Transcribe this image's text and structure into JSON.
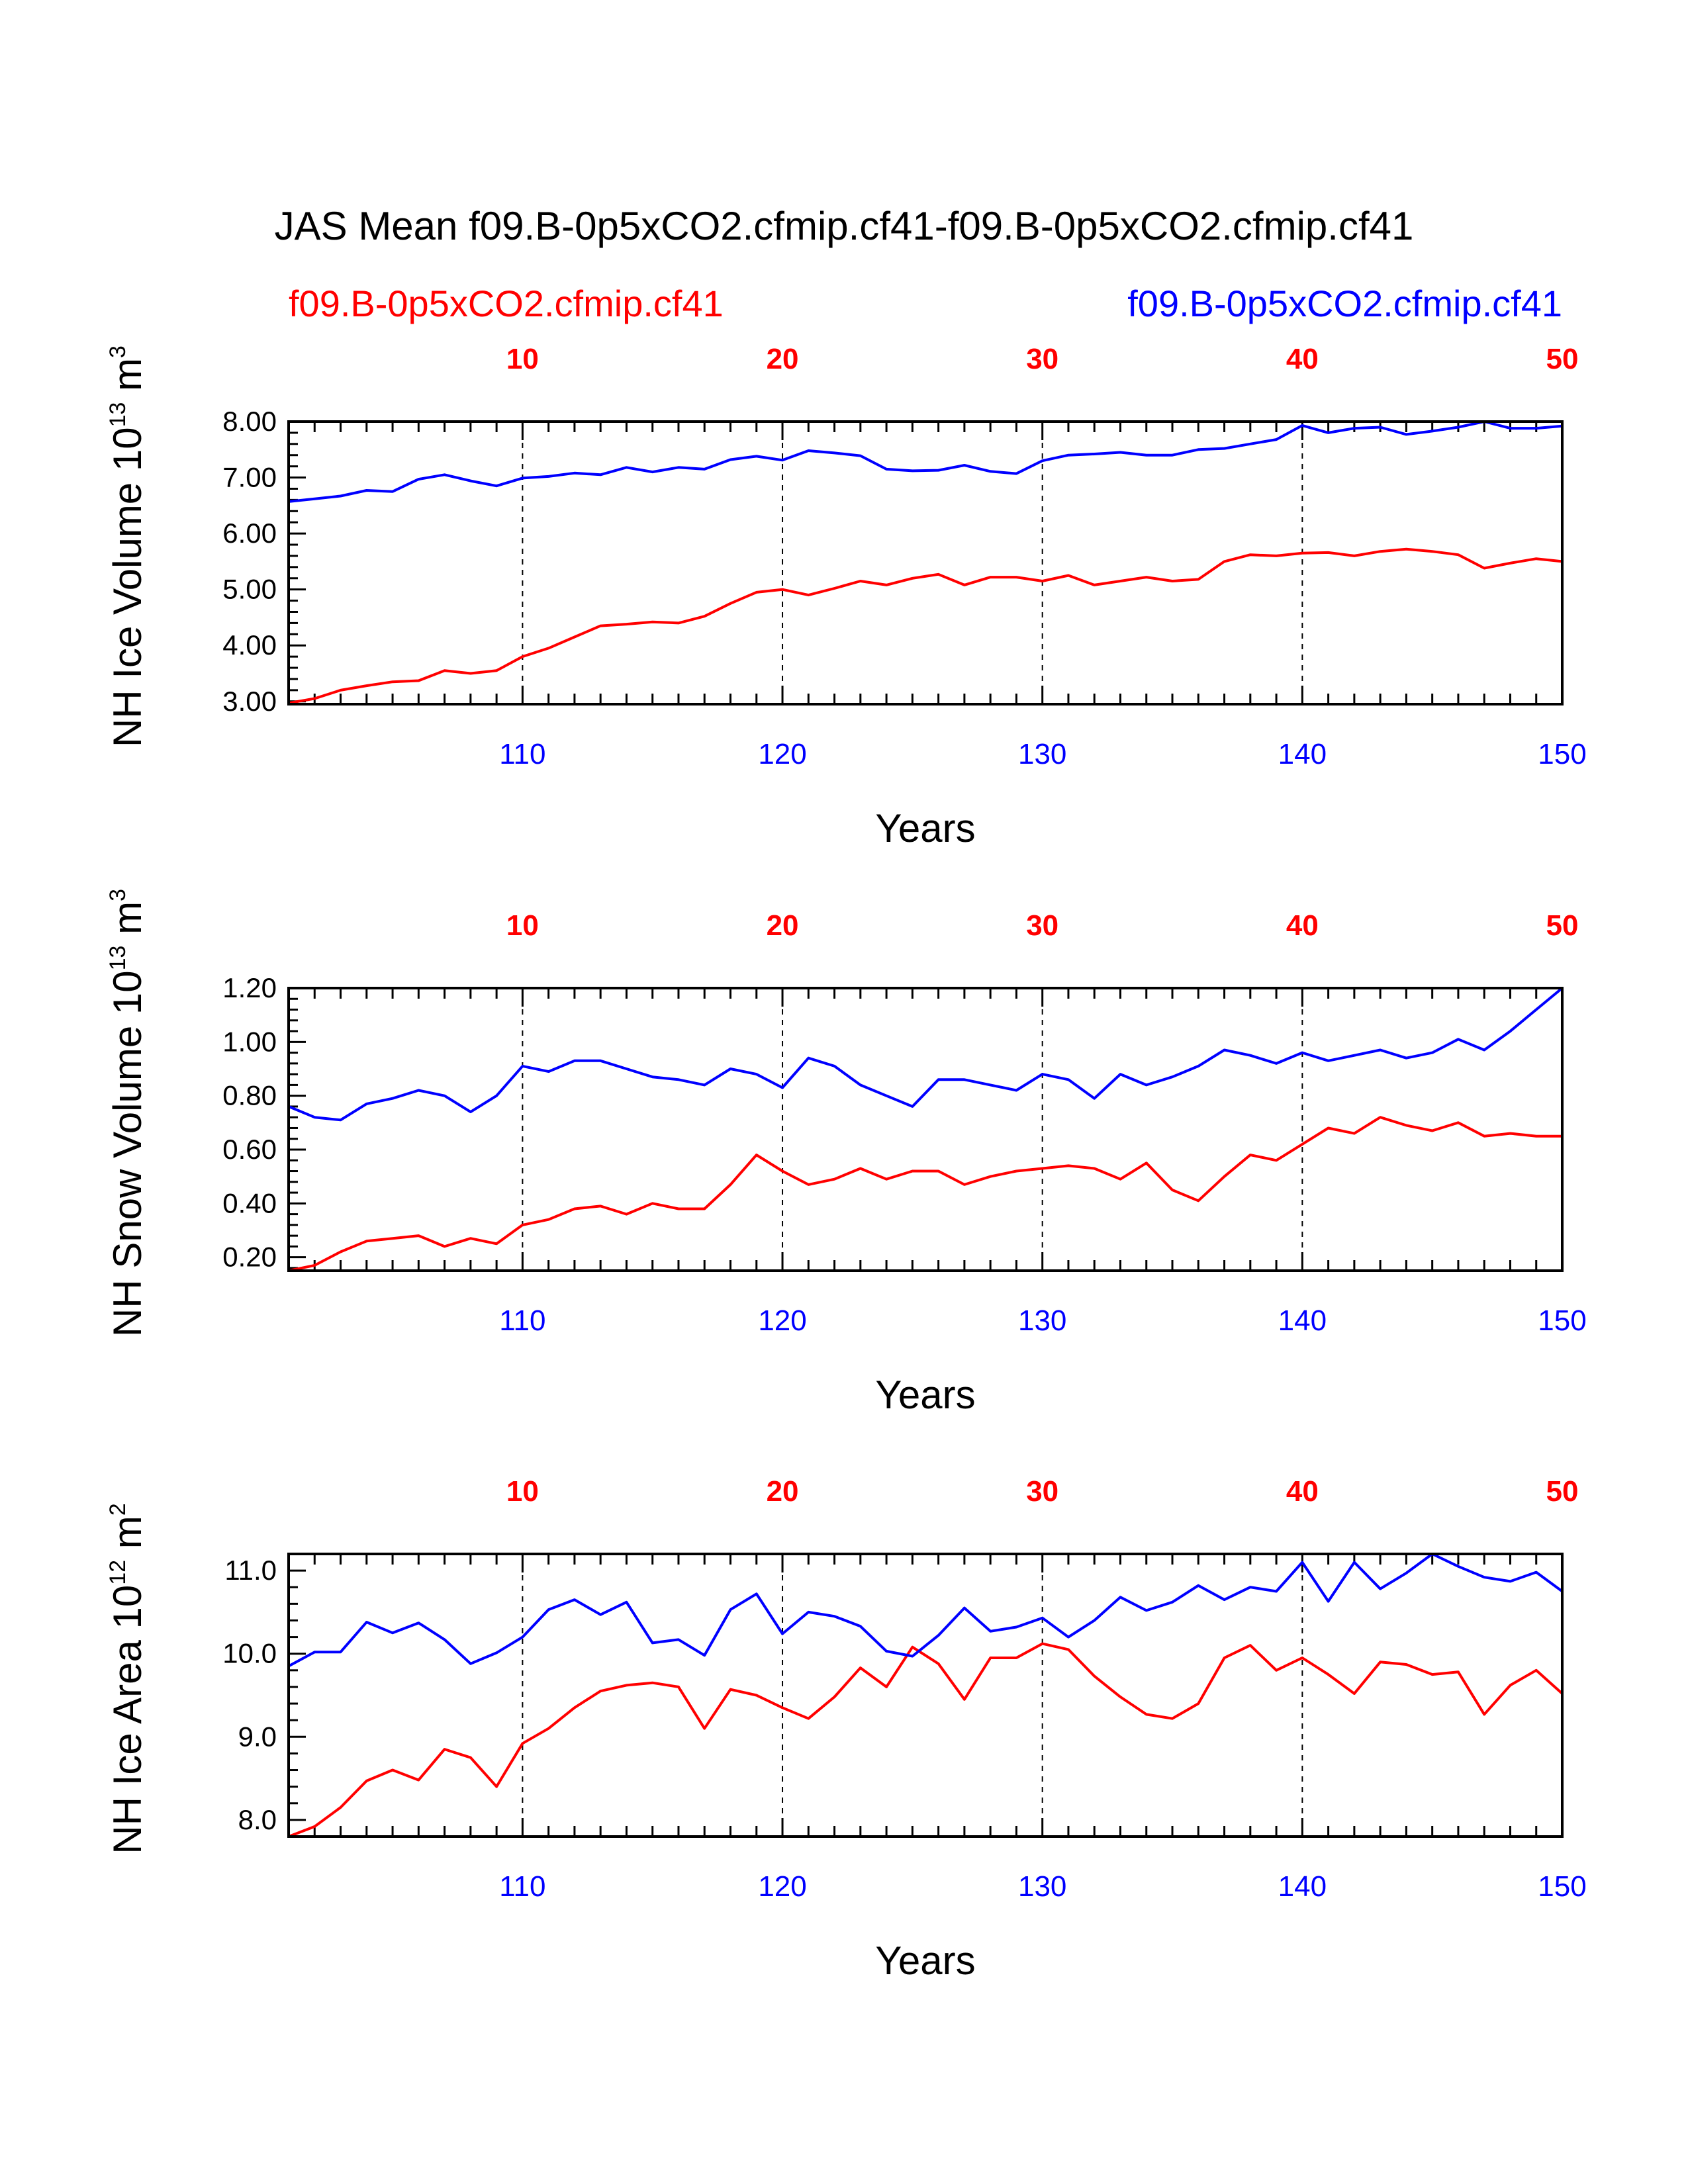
{
  "title": "JAS Mean f09.B-0p5xCO2.cfmip.cf41-f09.B-0p5xCO2.cfmip.cf41",
  "series_labels": {
    "left": "f09.B-0p5xCO2.cfmip.cf41",
    "right": "f09.B-0p5xCO2.cfmip.cf41"
  },
  "colors": {
    "case1": "#ff0000",
    "case2": "#0000ff",
    "axis": "#000000"
  },
  "chart_data": [
    {
      "type": "line",
      "ylabel": "NH Ice Volume 10",
      "ylabel_exp": "13",
      "ylabel_unit": " m",
      "ylabel_unit_exp": "3",
      "xlabel": "Years",
      "ylim": [
        2.95,
        8.0
      ],
      "yticks": [
        3,
        4,
        5,
        6,
        7,
        8
      ],
      "ytick_labels": [
        "3.00",
        "4.00",
        "5.00",
        "6.00",
        "7.00",
        "8.00"
      ],
      "y_minor_step": 0.2,
      "xlim": [
        101,
        150
      ],
      "bottom_ticks": [
        110,
        120,
        130,
        140,
        150
      ],
      "top_ticks": [
        10,
        20,
        30,
        40,
        50
      ],
      "grid_vertical_dashed": [
        110,
        120,
        130,
        140
      ],
      "x": [
        101,
        102,
        103,
        104,
        105,
        106,
        107,
        108,
        109,
        110,
        111,
        112,
        113,
        114,
        115,
        116,
        117,
        118,
        119,
        120,
        121,
        122,
        123,
        124,
        125,
        126,
        127,
        128,
        129,
        130,
        131,
        132,
        133,
        134,
        135,
        136,
        137,
        138,
        139,
        140,
        141,
        142,
        143,
        144,
        145,
        146,
        147,
        148,
        149,
        150
      ],
      "series": [
        {
          "name": "f09.B-0p5xCO2.cfmip.cf41",
          "color": "#ff0000",
          "values": [
            2.97,
            3.05,
            3.2,
            3.28,
            3.35,
            3.37,
            3.55,
            3.5,
            3.55,
            3.8,
            3.95,
            4.15,
            4.35,
            4.38,
            4.42,
            4.4,
            4.52,
            4.75,
            4.95,
            5.0,
            4.9,
            5.02,
            5.15,
            5.08,
            5.2,
            5.27,
            5.08,
            5.22,
            5.22,
            5.15,
            5.25,
            5.08,
            5.15,
            5.22,
            5.15,
            5.18,
            5.5,
            5.62,
            5.6,
            5.65,
            5.66,
            5.6,
            5.68,
            5.72,
            5.68,
            5.62,
            5.38,
            5.47,
            5.55,
            5.5
          ]
        },
        {
          "name": "f09.B-0p5xCO2.cfmip.cf41",
          "color": "#0000ff",
          "values": [
            6.57,
            6.62,
            6.67,
            6.77,
            6.75,
            6.97,
            7.05,
            6.94,
            6.85,
            6.99,
            7.02,
            7.08,
            7.05,
            7.18,
            7.1,
            7.18,
            7.15,
            7.32,
            7.38,
            7.31,
            7.48,
            7.44,
            7.39,
            7.15,
            7.12,
            7.13,
            7.22,
            7.11,
            7.07,
            7.3,
            7.4,
            7.42,
            7.45,
            7.4,
            7.4,
            7.5,
            7.52,
            7.6,
            7.68,
            7.93,
            7.8,
            7.88,
            7.9,
            7.77,
            7.83,
            7.9,
            8.0,
            7.88,
            7.88,
            7.92
          ]
        }
      ]
    },
    {
      "type": "line",
      "ylabel": "NH Snow Volume 10",
      "ylabel_exp": "13",
      "ylabel_unit": " m",
      "ylabel_unit_exp": "3",
      "xlabel": "Years",
      "ylim": [
        0.15,
        1.2
      ],
      "yticks": [
        0.2,
        0.4,
        0.6,
        0.8,
        1.0,
        1.2
      ],
      "ytick_labels": [
        "0.20",
        "0.40",
        "0.60",
        "0.80",
        "1.00",
        "1.20"
      ],
      "y_minor_step": 0.04,
      "xlim": [
        101,
        150
      ],
      "bottom_ticks": [
        110,
        120,
        130,
        140,
        150
      ],
      "top_ticks": [
        10,
        20,
        30,
        40,
        50
      ],
      "grid_vertical_dashed": [
        110,
        120,
        130,
        140
      ],
      "x": [
        101,
        102,
        103,
        104,
        105,
        106,
        107,
        108,
        109,
        110,
        111,
        112,
        113,
        114,
        115,
        116,
        117,
        118,
        119,
        120,
        121,
        122,
        123,
        124,
        125,
        126,
        127,
        128,
        129,
        130,
        131,
        132,
        133,
        134,
        135,
        136,
        137,
        138,
        139,
        140,
        141,
        142,
        143,
        144,
        145,
        146,
        147,
        148,
        149,
        150
      ],
      "series": [
        {
          "name": "f09.B-0p5xCO2.cfmip.cf41",
          "color": "#ff0000",
          "values": [
            0.15,
            0.17,
            0.22,
            0.26,
            0.27,
            0.28,
            0.24,
            0.27,
            0.25,
            0.32,
            0.34,
            0.38,
            0.39,
            0.36,
            0.4,
            0.38,
            0.38,
            0.47,
            0.58,
            0.52,
            0.47,
            0.49,
            0.53,
            0.49,
            0.52,
            0.52,
            0.47,
            0.5,
            0.52,
            0.53,
            0.54,
            0.53,
            0.49,
            0.55,
            0.45,
            0.41,
            0.5,
            0.58,
            0.56,
            0.62,
            0.68,
            0.66,
            0.72,
            0.69,
            0.67,
            0.7,
            0.65,
            0.66,
            0.65,
            0.65
          ]
        },
        {
          "name": "f09.B-0p5xCO2.cfmip.cf41",
          "color": "#0000ff",
          "values": [
            0.76,
            0.72,
            0.71,
            0.77,
            0.79,
            0.82,
            0.8,
            0.74,
            0.8,
            0.91,
            0.89,
            0.93,
            0.93,
            0.9,
            0.87,
            0.86,
            0.84,
            0.9,
            0.88,
            0.83,
            0.94,
            0.91,
            0.84,
            0.8,
            0.76,
            0.86,
            0.86,
            0.84,
            0.82,
            0.88,
            0.86,
            0.79,
            0.88,
            0.84,
            0.87,
            0.91,
            0.97,
            0.95,
            0.92,
            0.96,
            0.93,
            0.95,
            0.97,
            0.94,
            0.96,
            1.01,
            0.97,
            1.04,
            1.12,
            1.2
          ]
        }
      ]
    },
    {
      "type": "line",
      "ylabel": "NH Ice Area 10",
      "ylabel_exp": "12",
      "ylabel_unit": " m",
      "ylabel_unit_exp": "2",
      "xlabel": "Years",
      "ylim": [
        7.8,
        11.2
      ],
      "yticks": [
        8,
        9,
        10,
        11
      ],
      "ytick_labels": [
        "8.0",
        "9.0",
        "10.0",
        "11.0"
      ],
      "y_minor_step": 0.2,
      "xlim": [
        101,
        150
      ],
      "bottom_ticks": [
        110,
        120,
        130,
        140,
        150
      ],
      "top_ticks": [
        10,
        20,
        30,
        40,
        50
      ],
      "grid_vertical_dashed": [
        110,
        120,
        130,
        140
      ],
      "x": [
        101,
        102,
        103,
        104,
        105,
        106,
        107,
        108,
        109,
        110,
        111,
        112,
        113,
        114,
        115,
        116,
        117,
        118,
        119,
        120,
        121,
        122,
        123,
        124,
        125,
        126,
        127,
        128,
        129,
        130,
        131,
        132,
        133,
        134,
        135,
        136,
        137,
        138,
        139,
        140,
        141,
        142,
        143,
        144,
        145,
        146,
        147,
        148,
        149,
        150
      ],
      "series": [
        {
          "name": "f09.B-0p5xCO2.cfmip.cf41",
          "color": "#ff0000",
          "values": [
            7.8,
            7.92,
            8.15,
            8.47,
            8.6,
            8.48,
            8.85,
            8.75,
            8.4,
            8.92,
            9.1,
            9.35,
            9.55,
            9.62,
            9.65,
            9.6,
            9.1,
            9.57,
            9.5,
            9.35,
            9.22,
            9.48,
            9.83,
            9.6,
            10.08,
            9.88,
            9.45,
            9.95,
            9.95,
            10.12,
            10.05,
            9.73,
            9.48,
            9.27,
            9.22,
            9.4,
            9.95,
            10.1,
            9.8,
            9.95,
            9.75,
            9.52,
            9.9,
            9.87,
            9.75,
            9.78,
            9.27,
            9.62,
            9.8,
            9.52
          ]
        },
        {
          "name": "f09.B-0p5xCO2.cfmip.cf41",
          "color": "#0000ff",
          "values": [
            9.85,
            10.02,
            10.02,
            10.38,
            10.25,
            10.37,
            10.17,
            9.88,
            10.01,
            10.2,
            10.53,
            10.65,
            10.47,
            10.62,
            10.13,
            10.17,
            9.98,
            10.53,
            10.72,
            10.24,
            10.5,
            10.45,
            10.33,
            10.03,
            9.97,
            10.22,
            10.55,
            10.27,
            10.32,
            10.43,
            10.2,
            10.4,
            10.68,
            10.52,
            10.62,
            10.82,
            10.65,
            10.8,
            10.75,
            11.1,
            10.63,
            11.1,
            10.78,
            10.97,
            11.2,
            11.05,
            10.92,
            10.87,
            10.98,
            10.75
          ]
        }
      ]
    }
  ]
}
